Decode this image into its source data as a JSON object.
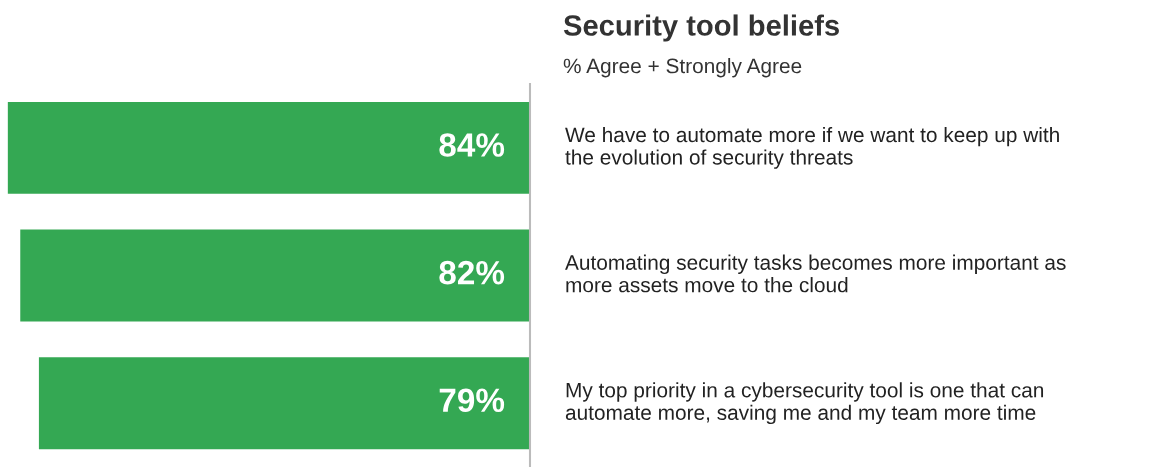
{
  "chart_data": {
    "type": "bar",
    "orientation": "horizontal",
    "title": "Security tool beliefs",
    "subtitle": "% Agree + Strongly Agree",
    "categories": [
      "We have to automate more if we want to keep up with the evolution of security threats",
      "Automating security tasks becomes more important as more assets move to the cloud",
      "My top priority in a cybersecurity tool is one that can automate more, saving me and my team more time"
    ],
    "values": [
      84,
      82,
      79
    ],
    "value_labels": [
      "84%",
      "82%",
      "79%"
    ],
    "color": "#34a853",
    "legend": false
  }
}
